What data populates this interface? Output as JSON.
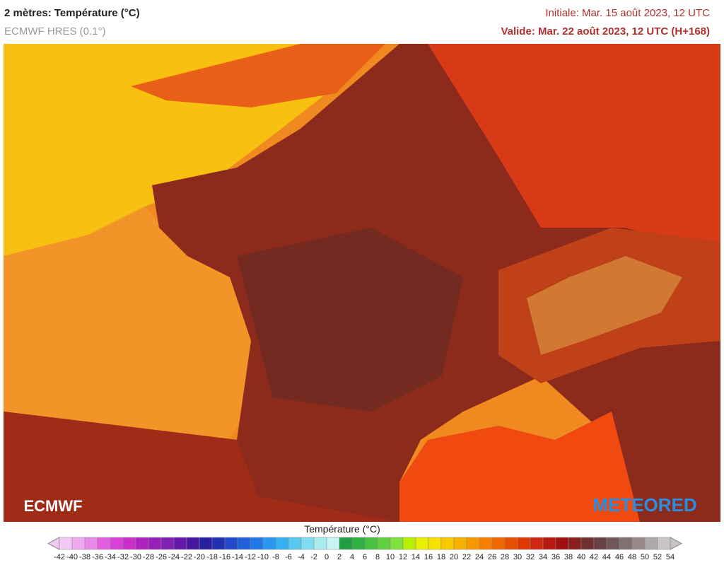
{
  "header": {
    "title": "2 mètres: Température (°C)",
    "model": "ECMWF HRES (0.1°)",
    "initial": "Initiale: Mar. 15 août 2023, 12 UTC",
    "valid": "Valide: Mar. 22 août 2023, 12 UTC (H+168)"
  },
  "logos": {
    "left": "ECMWF",
    "right": "METEORED"
  },
  "legend": {
    "title": "Température (°C)",
    "ticks": [
      -42,
      -40,
      -38,
      -36,
      -34,
      -32,
      -30,
      -28,
      -26,
      -24,
      -22,
      -20,
      -18,
      -16,
      -14,
      -12,
      -10,
      -8,
      -6,
      -4,
      -2,
      0,
      2,
      4,
      6,
      8,
      10,
      12,
      14,
      16,
      18,
      20,
      22,
      24,
      26,
      28,
      30,
      32,
      34,
      36,
      38,
      40,
      42,
      44,
      46,
      48,
      50,
      52,
      54
    ],
    "colors": [
      "#f4c8f4",
      "#f0a8f0",
      "#e888e8",
      "#e060e0",
      "#d840d8",
      "#c830c8",
      "#b020c0",
      "#9820b8",
      "#8020b0",
      "#6818a8",
      "#4818a0",
      "#2820a0",
      "#2030b0",
      "#2048c8",
      "#2060d8",
      "#2078e8",
      "#2898f0",
      "#38b0f0",
      "#58c8f0",
      "#80dcf0",
      "#a8ecf0",
      "#c8f4f4",
      "#20a040",
      "#30b040",
      "#48c040",
      "#60d040",
      "#80e040",
      "#b8f000",
      "#e8f000",
      "#f8e000",
      "#f8c800",
      "#f8b000",
      "#f89800",
      "#f88000",
      "#f06800",
      "#e85000",
      "#e03800",
      "#d02810",
      "#b81810",
      "#a01010",
      "#882020",
      "#703030",
      "#6a4040",
      "#705858",
      "#807070",
      "#988888",
      "#b0a8a8",
      "#c8c4c4"
    ]
  }
}
